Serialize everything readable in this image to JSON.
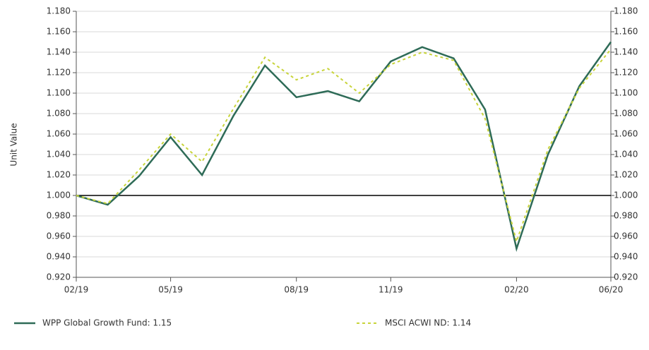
{
  "chart_data": {
    "type": "line",
    "y_label": "Unit Value",
    "categories": [
      "02/19",
      null,
      null,
      "05/19",
      null,
      null,
      null,
      "08/19",
      null,
      null,
      "11/19",
      null,
      null,
      null,
      "02/20",
      null,
      null,
      "06/20"
    ],
    "series": [
      {
        "name": "WPP Global Growth Fund: 1.15",
        "color": "#2e6b57",
        "dash": false,
        "values": [
          1.0,
          0.991,
          1.019,
          1.057,
          1.02,
          1.078,
          1.127,
          1.096,
          1.102,
          1.092,
          1.131,
          1.145,
          1.134,
          1.084,
          0.948,
          1.04,
          1.107,
          1.15
        ]
      },
      {
        "name": "MSCI ACWI ND: 1.14",
        "color": "#c8d43a",
        "dash": true,
        "values": [
          1.0,
          0.992,
          1.025,
          1.06,
          1.033,
          1.085,
          1.135,
          1.113,
          1.124,
          1.1,
          1.128,
          1.14,
          1.132,
          1.075,
          0.955,
          1.045,
          1.105,
          1.143
        ]
      }
    ],
    "ylim": [
      0.92,
      1.18
    ],
    "yticks": [
      {
        "value": 0.92,
        "label": "0.920"
      },
      {
        "value": 0.94,
        "label": "0.940"
      },
      {
        "value": 0.96,
        "label": "0.960"
      },
      {
        "value": 0.98,
        "label": "0.980"
      },
      {
        "value": 1.0,
        "label": "1.000"
      },
      {
        "value": 1.02,
        "label": "1.020"
      },
      {
        "value": 1.04,
        "label": "1.040"
      },
      {
        "value": 1.06,
        "label": "1.060"
      },
      {
        "value": 1.08,
        "label": "1.080"
      },
      {
        "value": 1.1,
        "label": "1.100"
      },
      {
        "value": 1.12,
        "label": "1.120"
      },
      {
        "value": 1.14,
        "label": "1.140"
      },
      {
        "value": 1.16,
        "label": "1.160"
      },
      {
        "value": 1.18,
        "label": "1.180"
      }
    ],
    "y2lim": [
      0.92,
      1.18
    ],
    "y2ticks": [
      {
        "value": 0.92,
        "label": "0.920"
      },
      {
        "value": 0.94,
        "label": "0.940"
      },
      {
        "value": 0.96,
        "label": "0.960"
      },
      {
        "value": 0.98,
        "label": "0.980"
      },
      {
        "value": 1.0,
        "label": "1.000"
      },
      {
        "value": 1.02,
        "label": "1.020"
      },
      {
        "value": 1.04,
        "label": "1.040"
      },
      {
        "value": 1.06,
        "label": "1.060"
      },
      {
        "value": 1.08,
        "label": "1.080"
      },
      {
        "value": 1.1,
        "label": "1.100"
      },
      {
        "value": 1.12,
        "label": "1.120"
      },
      {
        "value": 1.14,
        "label": "1.140"
      },
      {
        "value": 1.16,
        "label": "1.160"
      },
      {
        "value": 1.18,
        "label": "1.180"
      }
    ],
    "reference_line": 1.0,
    "grid": true,
    "legend": "bottom"
  }
}
